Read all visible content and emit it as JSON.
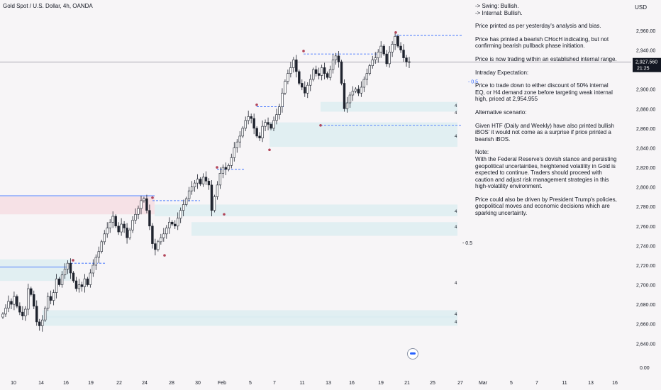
{
  "header": {
    "title": "Gold Spot / U.S. Dollar, 4h, OANDA",
    "currency": "USD"
  },
  "notes": [
    "-> Swing:  Bullish.",
    "-> Internal:  Bullish.",
    "Price printed as per yesterday's analysis and bias.",
    "Price has printed a bearish CHocH indicating, but not confirming bearish pullback phase initiation.",
    "Price is now trading within an established internal range.",
    "Intraday Expectation:",
    "Price to trade down to either discount of 50% internal EQ, or H4 demand zone before targeting weak internal high, priced at 2,954.955",
    "Alternative scenario:",
    "Given HTF (Daily and Weekly) have also printed bullish iBOS' it would not come as a surprise if price printed a bearish iBOS.",
    "Note:",
    "With the Federal Reserve's dovish stance and persisting geopolitical uncertainties, heightened volatility in Gold is expected to continue. Traders should proceed with caution and adjust risk management strategies in this high-volatility environment.",
    "Price could also be driven by President Trump's policies, geopolitical moves and economic decisions which are sparking uncertainty."
  ],
  "chart_data": {
    "type": "candlestick",
    "symbol": "XAUUSD",
    "timeframe": "4h",
    "y_ticks": [
      2960,
      2940,
      2920,
      2900,
      2880,
      2860,
      2840,
      2820,
      2800,
      2780,
      2760,
      2740,
      2720,
      2700,
      2680,
      2660,
      2640
    ],
    "y_tick_labels": [
      "2,960.00",
      "2,940.00",
      "2,920.00",
      "2,900.00",
      "2,880.00",
      "2,860.00",
      "2,840.00",
      "2,820.00",
      "2,800.00",
      "2,780.00",
      "2,760.00",
      "2,740.00",
      "2,720.00",
      "2,700.00",
      "2,680.00",
      "2,660.00",
      "2,640.00"
    ],
    "y_extra_label": "0.00",
    "x_ticks": [
      "10",
      "14",
      "16",
      "19",
      "22",
      "24",
      "28",
      "30",
      "Feb",
      "5",
      "7",
      "11",
      "13",
      "16",
      "19",
      "21",
      "25",
      "27",
      "Mar",
      "5",
      "7",
      "11",
      "13",
      "16"
    ],
    "current_price": {
      "label": "2,927.560",
      "value": 2927.56,
      "countdown": "21:25"
    },
    "eq_labels": [
      "0.5",
      "0.5"
    ],
    "zone_markers": [
      "4",
      "4",
      "4",
      "4",
      "4",
      "4",
      "4",
      "4"
    ],
    "close_path": [
      2670,
      2676,
      2683,
      2680,
      2688,
      2678,
      2672,
      2668,
      2675,
      2696,
      2690,
      2678,
      2662,
      2658,
      2664,
      2676,
      2688,
      2684,
      2692,
      2706,
      2700,
      2710,
      2716,
      2722,
      2712,
      2704,
      2696,
      2700,
      2698,
      2706,
      2700,
      2712,
      2720,
      2728,
      2734,
      2744,
      2752,
      2758,
      2764,
      2770,
      2760,
      2754,
      2762,
      2758,
      2748,
      2756,
      2766,
      2772,
      2778,
      2786,
      2788,
      2776,
      2760,
      2742,
      2736,
      2744,
      2748,
      2752,
      2758,
      2764,
      2762,
      2760,
      2768,
      2776,
      2782,
      2788,
      2796,
      2800,
      2804,
      2808,
      2803,
      2810,
      2806,
      2802,
      2776,
      2790,
      2802,
      2814,
      2820,
      2818,
      2822,
      2830,
      2840,
      2846,
      2852,
      2860,
      2868,
      2872,
      2870,
      2860,
      2852,
      2850,
      2862,
      2866,
      2864,
      2860,
      2868,
      2874,
      2882,
      2896,
      2908,
      2916,
      2922,
      2930,
      2918,
      2906,
      2902,
      2896,
      2904,
      2910,
      2920,
      2916,
      2914,
      2922,
      2916,
      2912,
      2920,
      2930,
      2934,
      2928,
      2906,
      2880,
      2886,
      2894,
      2898,
      2900,
      2896,
      2902,
      2910,
      2916,
      2924,
      2930,
      2932,
      2938,
      2944,
      2936,
      2926,
      2938,
      2946,
      2954,
      2944,
      2940,
      2932,
      2928,
      2927.56
    ],
    "eq_levels": [
      2908,
      2743
    ],
    "demand_zones": [
      [
        2887,
        2877
      ],
      [
        2866,
        2841
      ],
      [
        2782,
        2770
      ],
      [
        2764,
        2750
      ],
      [
        2674,
        2666
      ],
      [
        2668,
        2658
      ],
      [
        2726,
        2704
      ]
    ],
    "supply_zones": [
      [
        2790,
        2772
      ]
    ],
    "swing_highs": [
      2954.955,
      2936,
      2882,
      2818,
      2786,
      2722
    ],
    "swing_lows": [
      2863,
      2732
    ]
  }
}
